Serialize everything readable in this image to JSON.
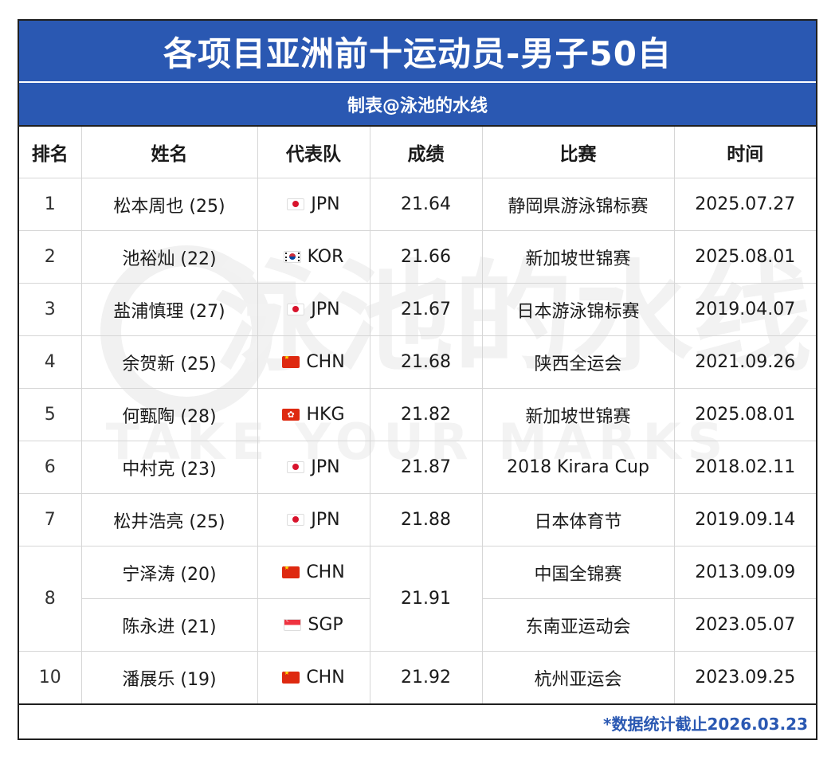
{
  "title": "各项目亚洲前十运动员-男子50自",
  "subtitle": "制表@泳池的水线",
  "columns": [
    "排名",
    "姓名",
    "代表队",
    "成绩",
    "比赛",
    "时间"
  ],
  "rows": [
    {
      "rank": "1",
      "name": "松本周也 (25)",
      "team": "JPN",
      "flag": "jp",
      "time": "21.64",
      "event": "静岡県游泳锦标赛",
      "date": "2025.07.27"
    },
    {
      "rank": "2",
      "name": "池裕灿 (22)",
      "team": "KOR",
      "flag": "kr",
      "time": "21.66",
      "event": "新加坡世锦赛",
      "date": "2025.08.01"
    },
    {
      "rank": "3",
      "name": "盐浦慎理 (27)",
      "team": "JPN",
      "flag": "jp",
      "time": "21.67",
      "event": "日本游泳锦标赛",
      "date": "2019.04.07"
    },
    {
      "rank": "4",
      "name": "余贺新 (25)",
      "team": "CHN",
      "flag": "cn",
      "time": "21.68",
      "event": "陕西全运会",
      "date": "2021.09.26"
    },
    {
      "rank": "5",
      "name": "何甄陶 (28)",
      "team": "HKG",
      "flag": "hk",
      "time": "21.82",
      "event": "新加坡世锦赛",
      "date": "2025.08.01"
    },
    {
      "rank": "6",
      "name": "中村克 (23)",
      "team": "JPN",
      "flag": "jp",
      "time": "21.87",
      "event": "2018 Kirara Cup",
      "date": "2018.02.11"
    },
    {
      "rank": "7",
      "name": "松井浩亮 (25)",
      "team": "JPN",
      "flag": "jp",
      "time": "21.88",
      "event": "日本体育节",
      "date": "2019.09.14"
    },
    {
      "rank": "8",
      "name": "宁泽涛 (20)",
      "team": "CHN",
      "flag": "cn",
      "time": "21.91",
      "event": "中国全锦赛",
      "date": "2013.09.09"
    },
    {
      "rank": "8",
      "name": "陈永进 (21)",
      "team": "SGP",
      "flag": "sg",
      "time": "21.91",
      "event": "东南亚运动会",
      "date": "2023.05.07"
    },
    {
      "rank": "10",
      "name": "潘展乐 (19)",
      "team": "CHN",
      "flag": "cn",
      "time": "21.92",
      "event": "杭州亚运会",
      "date": "2023.09.25"
    }
  ],
  "footnote": "*数据统计截止2026.03.23",
  "watermark": {
    "main": "泳池的水线",
    "sub": "TAKE YOUR MARKS"
  },
  "colors": {
    "header_blue": "#2a58b2",
    "footer_text": "#2a58b2",
    "border": "#d6d6d6"
  }
}
